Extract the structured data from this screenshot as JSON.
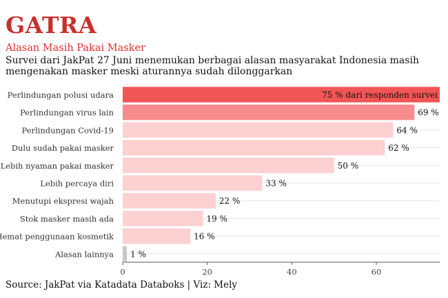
{
  "brand": "GATRA",
  "chart_data": {
    "type": "bar",
    "orientation": "horizontal",
    "title": "Alasan Masih Pakai Masker",
    "subtitle": "Survei dari JakPat 27 Juni menemukan berbagai alasan masyarakat Indonesia masih mengenakan masker meski aturannya sudah dilonggarkan",
    "categories": [
      "Perlindungan polusi udara",
      "Perlindungan virus lain",
      "Perlindungan Covid-19",
      "Dulu sudah pakai masker",
      "Lebih nyaman pakai masker",
      "Lebih percaya diri",
      "Menutupi ekspresi wajah",
      "Stok masker masih ada",
      "Hemat penggunaan kosmetik",
      "Alasan lainnya"
    ],
    "values": [
      75,
      69,
      64,
      62,
      50,
      33,
      22,
      19,
      16,
      1
    ],
    "data_labels": [
      "75 % dari responden survei",
      "69 %",
      "64 %",
      "62 %",
      "50 %",
      "33 %",
      "22 %",
      "19 %",
      "16 %",
      "1 %"
    ],
    "bar_colors": [
      "#f25555",
      "#f88b8e",
      "#fdd0d2",
      "#fdd0d2",
      "#fdd0d2",
      "#fdd0d2",
      "#fdd0d2",
      "#fdd0d2",
      "#fdd0d2",
      "#c8c8c8"
    ],
    "xticks": [
      0,
      20,
      40,
      60
    ],
    "xlim": [
      0,
      75
    ],
    "xlabel": "",
    "ylabel": "",
    "grid": true
  },
  "source": "Source: JakPat via Katadata Databoks | Viz: Mely"
}
